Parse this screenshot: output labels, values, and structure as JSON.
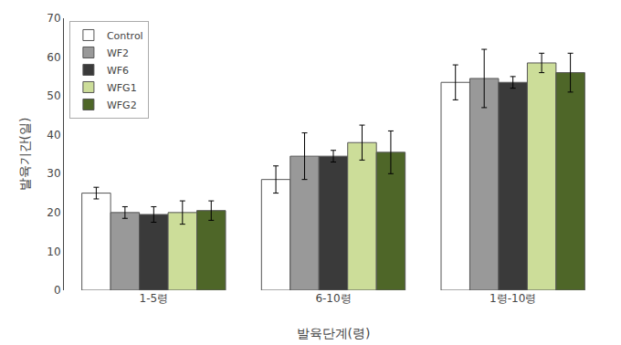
{
  "chart_data": {
    "type": "bar",
    "xlabel": "발육단계(령)",
    "ylabel": "발육기간(일)",
    "categories": [
      "1-5령",
      "6-10령",
      "1령-10령"
    ],
    "series": [
      {
        "name": "Control",
        "color": "#FFFFFF",
        "values": [
          25.0,
          28.5,
          53.5
        ],
        "errors": [
          1.5,
          3.5,
          4.5
        ]
      },
      {
        "name": "WF2",
        "color": "#999999",
        "values": [
          20.0,
          34.5,
          54.5
        ],
        "errors": [
          1.5,
          6.0,
          7.5
        ]
      },
      {
        "name": "WF6",
        "color": "#3A3A3A",
        "values": [
          19.5,
          34.5,
          53.5
        ],
        "errors": [
          2.0,
          1.5,
          1.5
        ]
      },
      {
        "name": "WFG1",
        "color": "#CCDD99",
        "values": [
          20.0,
          38.0,
          58.5
        ],
        "errors": [
          3.0,
          4.5,
          2.5
        ]
      },
      {
        "name": "WFG2",
        "color": "#4E6628",
        "values": [
          20.5,
          35.5,
          56.0
        ],
        "errors": [
          2.5,
          5.5,
          5.0
        ]
      }
    ],
    "ylim": [
      0,
      70
    ],
    "yticks": [
      0,
      10,
      20,
      30,
      40,
      50,
      60,
      70
    ],
    "grid": false,
    "legend": "upper left"
  }
}
